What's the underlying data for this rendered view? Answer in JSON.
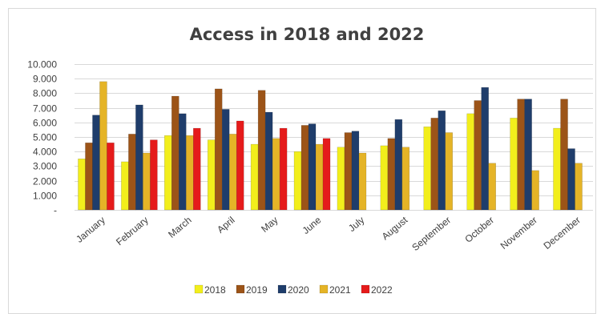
{
  "chart_data": {
    "type": "bar",
    "title": "Access in 2018 and 2022",
    "xlabel": "",
    "ylabel": "",
    "ylim": [
      0,
      10000
    ],
    "yticks": [
      "-",
      "1.000",
      "2.000",
      "3.000",
      "4.000",
      "5.000",
      "6.000",
      "7.000",
      "8.000",
      "9.000",
      "10.000"
    ],
    "grid": true,
    "legend_position": "bottom",
    "categories": [
      "January",
      "February",
      "March",
      "April",
      "May",
      "June",
      "July",
      "August",
      "September",
      "October",
      "November",
      "December"
    ],
    "series": [
      {
        "name": "2018",
        "color": "#F2EE1C",
        "values": [
          3500,
          3300,
          5100,
          4800,
          4500,
          4000,
          4300,
          4400,
          5700,
          6600,
          6300,
          5600
        ]
      },
      {
        "name": "2019",
        "color": "#9C5418",
        "values": [
          4600,
          5200,
          7800,
          8300,
          8200,
          5800,
          5300,
          4900,
          6300,
          7500,
          7600,
          7600
        ]
      },
      {
        "name": "2020",
        "color": "#1F3D6B",
        "values": [
          6500,
          7200,
          6600,
          6900,
          6700,
          5900,
          5400,
          6200,
          6800,
          8400,
          7600,
          4200
        ]
      },
      {
        "name": "2021",
        "color": "#E5B427",
        "values": [
          8800,
          3900,
          5100,
          5200,
          4900,
          4500,
          3900,
          4300,
          5300,
          3200,
          2700,
          3200
        ]
      },
      {
        "name": "2022",
        "color": "#E51B1B",
        "values": [
          4600,
          4800,
          5600,
          6100,
          5600,
          4900,
          null,
          null,
          null,
          null,
          null,
          null
        ]
      }
    ]
  }
}
